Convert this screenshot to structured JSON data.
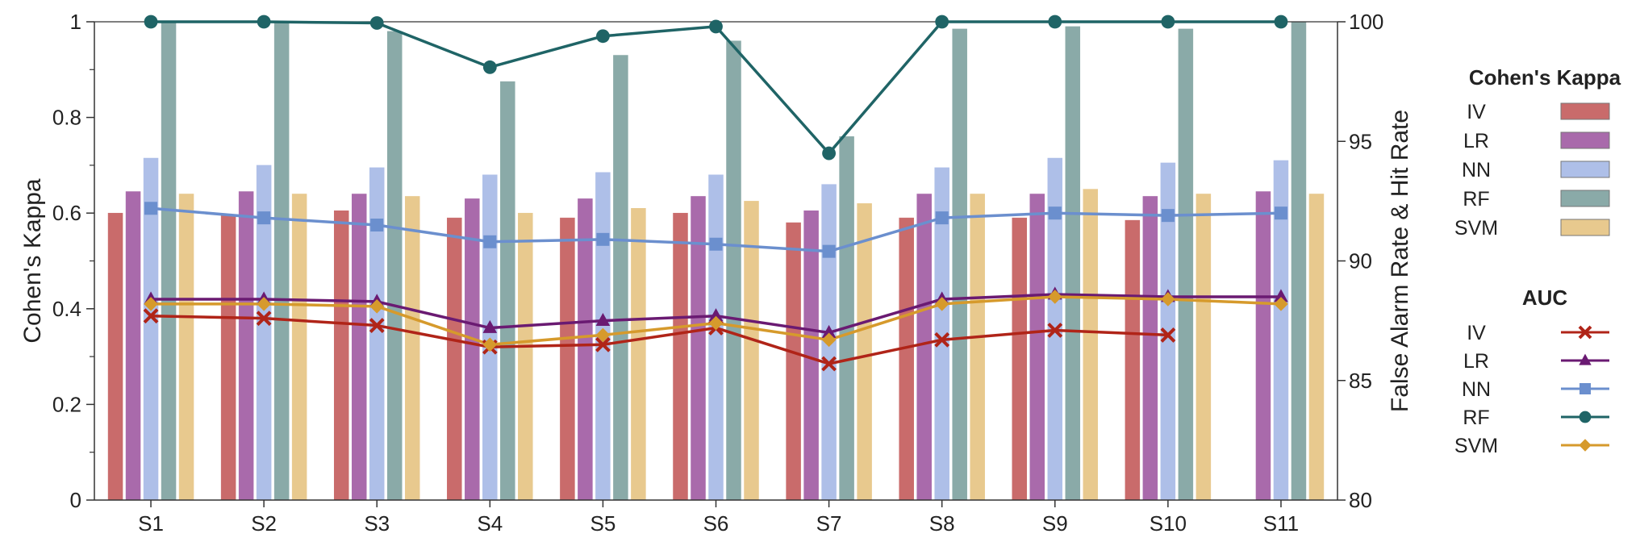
{
  "chart_data": {
    "type": "bar",
    "categories": [
      "S1",
      "S2",
      "S3",
      "S4",
      "S5",
      "S6",
      "S7",
      "S8",
      "S9",
      "S10",
      "S11"
    ],
    "left_axis": {
      "label": "Cohen's Kappa",
      "ylim": [
        0,
        1
      ],
      "ticks": [
        "0",
        "0.2",
        "0.4",
        "0.6",
        "0.8",
        "1"
      ]
    },
    "right_axis": {
      "label": "False Alarm Rate & Hit Rate",
      "ylim": [
        80,
        100
      ],
      "ticks": [
        "80",
        "85",
        "90",
        "95",
        "100"
      ]
    },
    "bar_series": [
      {
        "name": "IV",
        "color": "#c96b6b",
        "values": [
          0.6,
          0.595,
          0.605,
          0.59,
          0.59,
          0.6,
          0.58,
          0.59,
          0.59,
          0.585,
          null
        ]
      },
      {
        "name": "LR",
        "color": "#a96aab",
        "values": [
          0.645,
          0.645,
          0.64,
          0.63,
          0.63,
          0.635,
          0.605,
          0.64,
          0.64,
          0.635,
          0.645
        ]
      },
      {
        "name": "NN",
        "color": "#aebfe8",
        "values": [
          0.715,
          0.7,
          0.695,
          0.68,
          0.685,
          0.68,
          0.66,
          0.695,
          0.715,
          0.705,
          0.71
        ]
      },
      {
        "name": "RF",
        "color": "#8aaaa8",
        "values": [
          1.0,
          1.0,
          0.98,
          0.875,
          0.93,
          0.96,
          0.76,
          0.985,
          0.99,
          0.985,
          1.0
        ]
      },
      {
        "name": "SVM",
        "color": "#e8c98e",
        "values": [
          0.64,
          0.64,
          0.635,
          0.6,
          0.61,
          0.625,
          0.62,
          0.64,
          0.65,
          0.64,
          0.64
        ]
      }
    ],
    "line_series": [
      {
        "name": "IV",
        "color": "#b02418",
        "marker": "x",
        "values": [
          87.7,
          87.6,
          87.3,
          86.4,
          86.5,
          87.2,
          85.7,
          86.7,
          87.1,
          86.9,
          null
        ]
      },
      {
        "name": "LR",
        "color": "#6a1a72",
        "marker": "triangle",
        "values": [
          88.4,
          88.4,
          88.3,
          87.2,
          87.5,
          87.7,
          87.0,
          88.4,
          88.6,
          88.5,
          88.5
        ]
      },
      {
        "name": "NN",
        "color": "#6b8fce",
        "marker": "square",
        "values": [
          92.2,
          91.8,
          91.5,
          90.8,
          90.9,
          90.7,
          90.4,
          91.8,
          92.0,
          91.9,
          92.0
        ]
      },
      {
        "name": "RF",
        "color": "#1f6466",
        "marker": "circle",
        "values": [
          100.0,
          100.0,
          99.95,
          98.1,
          99.4,
          99.8,
          94.5,
          100.0,
          100.0,
          100.0,
          100.0
        ]
      },
      {
        "name": "SVM",
        "color": "#d69a2c",
        "marker": "diamond",
        "values": [
          88.2,
          88.2,
          88.1,
          86.5,
          86.9,
          87.4,
          86.7,
          88.2,
          88.5,
          88.4,
          88.2
        ]
      }
    ],
    "legend": {
      "placement": "right",
      "bars_title": "Cohen's Kappa",
      "lines_title": "AUC"
    }
  }
}
